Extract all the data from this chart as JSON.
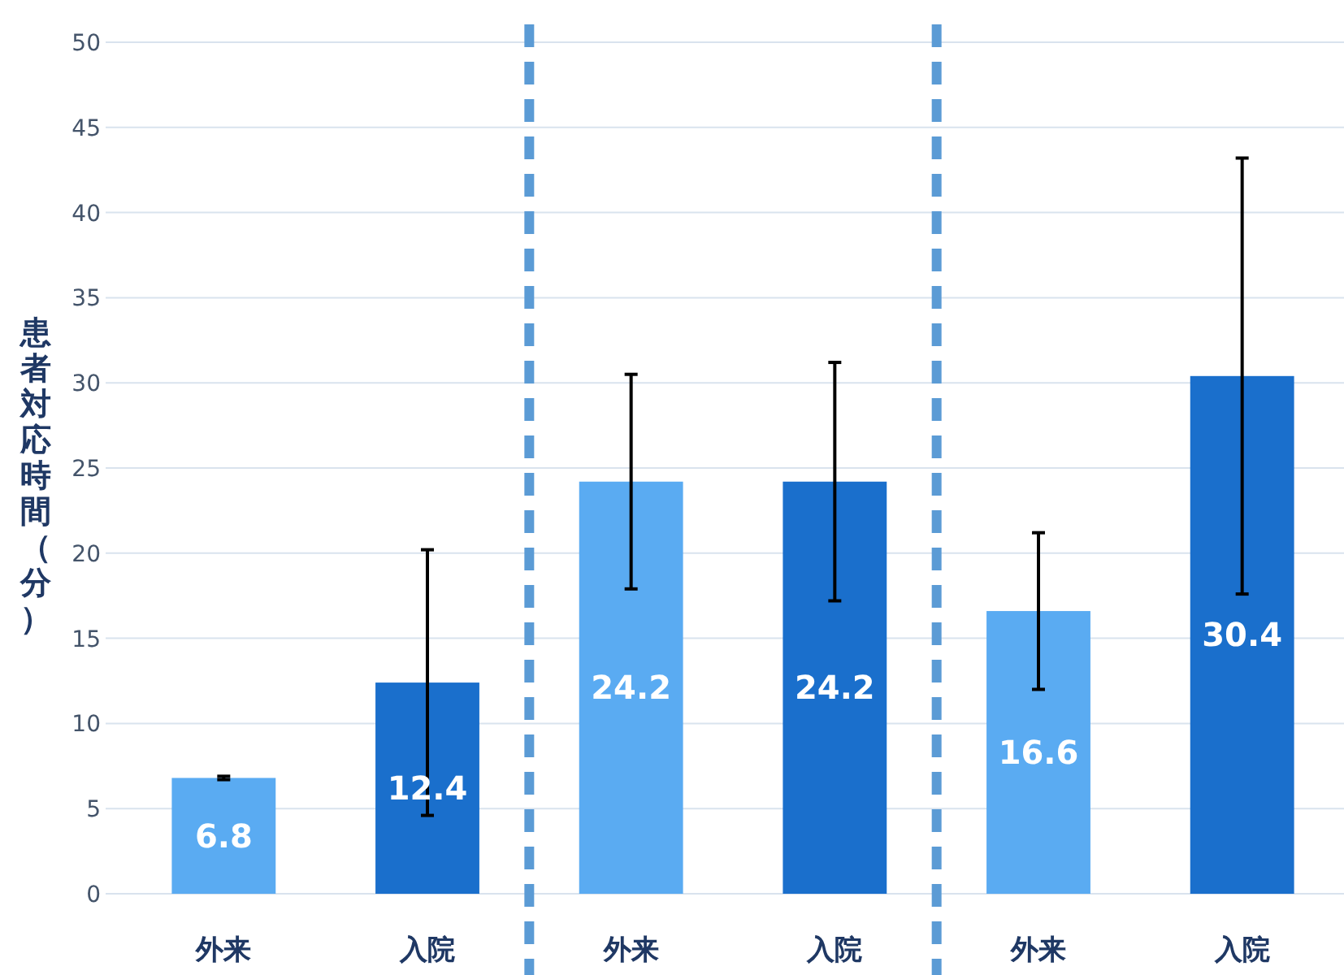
{
  "chart_data": {
    "type": "bar",
    "ylabel": "患者対応時間（分）",
    "categories": [
      "外来",
      "入院",
      "外来",
      "入院",
      "外来",
      "入院"
    ],
    "values": [
      6.8,
      12.4,
      24.2,
      24.2,
      16.6,
      30.4
    ],
    "colors": [
      "#5aabf2",
      "#1a6fcc",
      "#5aabf2",
      "#1a6fcc",
      "#5aabf2",
      "#1a6fcc"
    ],
    "errors": [
      0.1,
      7.8,
      6.3,
      7.0,
      4.6,
      12.8
    ],
    "ylim": [
      0,
      50
    ],
    "yticks": [
      0,
      5,
      10,
      15,
      20,
      25,
      30,
      35,
      40,
      45,
      50
    ],
    "grid": "y",
    "data_labels": true
  }
}
